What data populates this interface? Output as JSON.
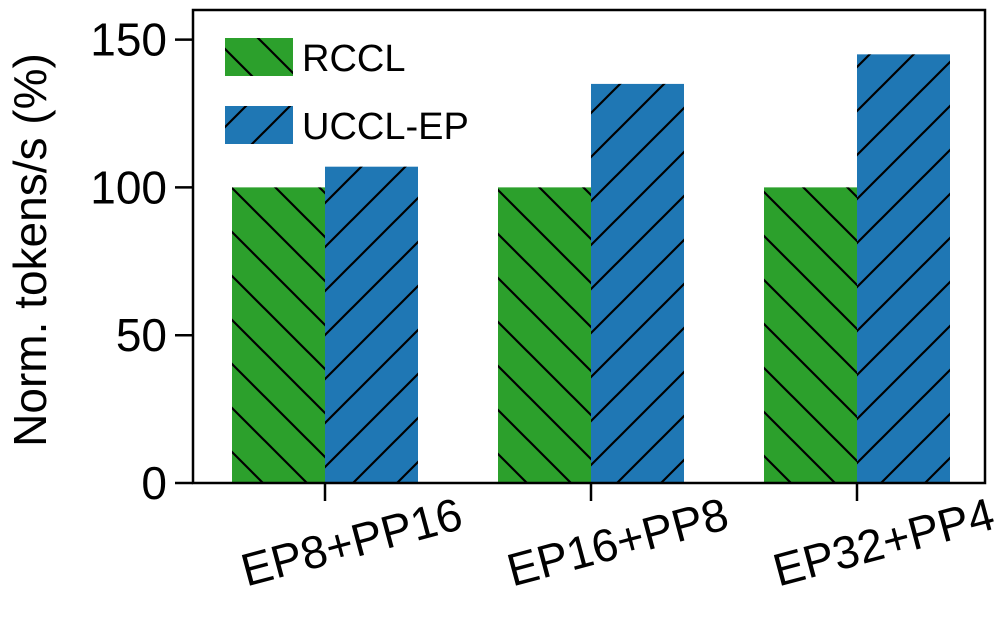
{
  "chart_data": {
    "type": "bar",
    "categories": [
      "EP8+PP16",
      "EP16+PP8",
      "EP32+PP4"
    ],
    "series": [
      {
        "name": "RCCL",
        "values": [
          100,
          100,
          100
        ],
        "color": "#2ca02c",
        "hatch": "backslash"
      },
      {
        "name": "UCCL-EP",
        "values": [
          107,
          135,
          145
        ],
        "color": "#1f77b4",
        "hatch": "slash"
      }
    ],
    "xlabel": "",
    "ylabel": "Norm. tokens/s (%)",
    "ylim": [
      0,
      160
    ],
    "yticks": [
      0,
      50,
      100,
      150
    ],
    "grid": false,
    "legend_position": "top-left"
  }
}
